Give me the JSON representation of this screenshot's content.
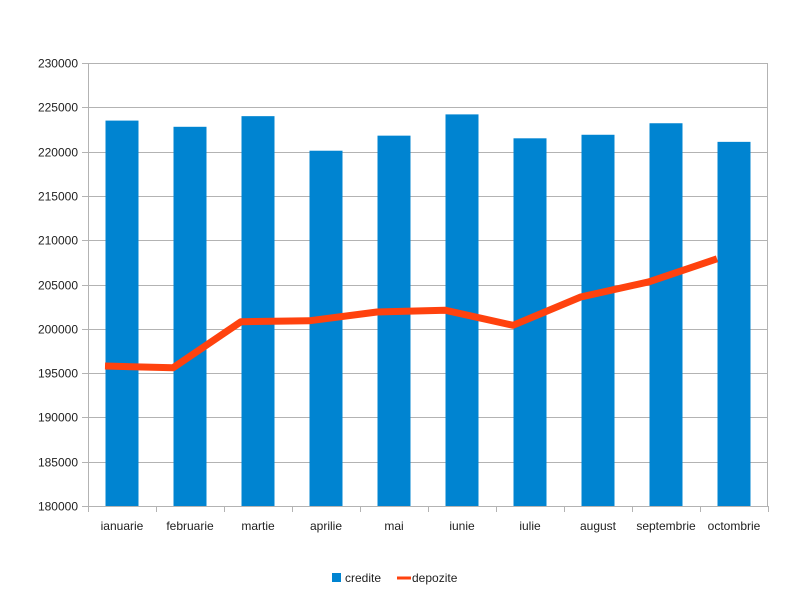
{
  "chart_data": {
    "type": "bar",
    "categories": [
      "ianuarie",
      "februarie",
      "martie",
      "aprilie",
      "mai",
      "iunie",
      "iulie",
      "august",
      "septembrie",
      "octombrie"
    ],
    "series": [
      {
        "name": "credite",
        "type": "bar",
        "color": "#0084d1",
        "values": [
          223500,
          222800,
          224000,
          220100,
          221800,
          224200,
          221500,
          221900,
          223200,
          221100
        ]
      },
      {
        "name": "depozite",
        "type": "line",
        "color": "#ff420e",
        "values": [
          195800,
          195600,
          200800,
          200900,
          201900,
          202100,
          200400,
          203600,
          205300,
          207900
        ]
      }
    ],
    "ylim": [
      180000,
      230000
    ],
    "y_ticks": [
      180000,
      185000,
      190000,
      195000,
      200000,
      205000,
      210000,
      215000,
      220000,
      225000,
      230000
    ],
    "grid": true,
    "legend_position": "bottom"
  }
}
